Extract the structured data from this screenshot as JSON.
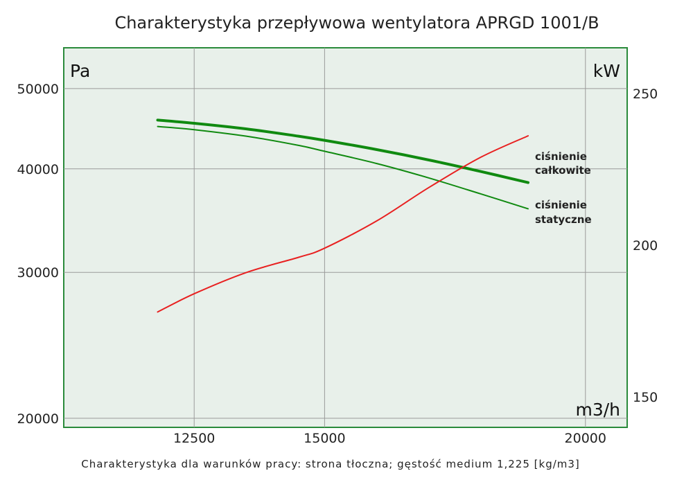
{
  "chart_data": {
    "type": "line",
    "title": "Charakterystyka przepływowa wentylatora APRGD 1001/B",
    "footer": "Charakterystyka dla warunków pracy: strona tłoczna; gęstość medium 1,225 [kg/m3]",
    "x_axis": {
      "unit": "m3/h",
      "range": [
        10000,
        20800
      ],
      "ticks": [
        {
          "value": 12500,
          "label": "12500"
        },
        {
          "value": 15000,
          "label": "15000"
        },
        {
          "value": 20000,
          "label": "20000"
        }
      ]
    },
    "y_axis_left": {
      "unit": "Pa",
      "scale": "log",
      "range": [
        19500,
        56000
      ],
      "ticks": [
        {
          "value": 20000,
          "label": "20000"
        },
        {
          "value": 30000,
          "label": "30000"
        },
        {
          "value": 40000,
          "label": "40000"
        },
        {
          "value": 50000,
          "label": "50000"
        }
      ]
    },
    "y_axis_right": {
      "unit": "kW",
      "range": [
        140,
        265
      ],
      "ticks": [
        {
          "value": 150,
          "label": "150"
        },
        {
          "value": 200,
          "label": "200"
        },
        {
          "value": 250,
          "label": "250"
        }
      ]
    },
    "grid": true,
    "colors": {
      "background": "#e8f0ea",
      "frame": "#2a8a3a",
      "grid": "#9a9a9a",
      "total_pressure": "#108a10",
      "static_pressure": "#108a10",
      "power": "#e82020"
    },
    "series": [
      {
        "key": "total",
        "name": "ciśnienie całkowite",
        "axis": "left",
        "width": 4,
        "x": [
          11800,
          12500,
          13500,
          14500,
          15000,
          16000,
          17000,
          18000,
          18900
        ],
        "y": [
          45800,
          45400,
          44700,
          43800,
          43300,
          42200,
          41000,
          39700,
          38500
        ]
      },
      {
        "key": "static",
        "name": "ciśnienie statyczne",
        "axis": "left",
        "width": 2,
        "x": [
          11800,
          12500,
          13500,
          14500,
          15000,
          16000,
          17000,
          18000,
          18900
        ],
        "y": [
          45000,
          44600,
          43800,
          42700,
          42000,
          40600,
          39000,
          37300,
          35800
        ]
      },
      {
        "key": "power",
        "name": "",
        "axis": "right",
        "width": 2,
        "x": [
          11800,
          12500,
          13500,
          14500,
          15000,
          16000,
          17000,
          18000,
          18900
        ],
        "y": [
          178,
          184,
          191,
          196,
          199,
          208,
          219,
          229,
          236
        ]
      }
    ],
    "curve_labels": [
      {
        "series": "total",
        "lines": [
          "ciśnienie",
          "całkowite"
        ]
      },
      {
        "series": "static",
        "lines": [
          "ciśnienie",
          "statyczne"
        ]
      }
    ]
  }
}
